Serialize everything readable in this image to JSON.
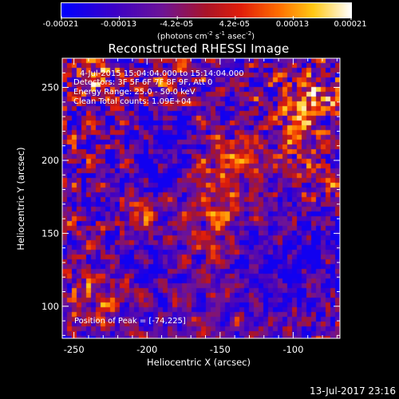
{
  "chart_data": {
    "type": "heatmap",
    "title": "Reconstructed RHESSI Image",
    "xlabel": "Heliocentric X (arcsec)",
    "ylabel": "Heliocentric Y (arcsec)",
    "xlim": [
      -258,
      -68
    ],
    "ylim": [
      78,
      270
    ],
    "xticks": [
      -250,
      -200,
      -150,
      -100
    ],
    "yticks": [
      100,
      150,
      200,
      250
    ],
    "colorbar": {
      "min": -0.00021,
      "max": 0.00021,
      "tick_labels": [
        "-0.00021",
        "-0.00013",
        "-4.2e-05",
        "4.2e-05",
        "0.00013",
        "0.00021"
      ],
      "units_prefix": "(photons cm",
      "units_exp1": "-2",
      "units_mid": " s",
      "units_exp2": "-1",
      "units_mid2": " asec",
      "units_exp3": "-2",
      "units_suffix": ")"
    },
    "annotations": {
      "time_range": "4-Jul-2015 15:04:04.000 to 15:14:04.000",
      "detectors": "Detectors: 3F 5F 6F 7F 8F 9F, Att 0",
      "energy": "Energy Range: 25.0 - 50.0 keV",
      "method_counts": "Clean     Total counts: 1.09E+04",
      "peak": "Position of Peak = [-74,225]"
    },
    "timestamp": "13-Jul-2017 23:16"
  }
}
